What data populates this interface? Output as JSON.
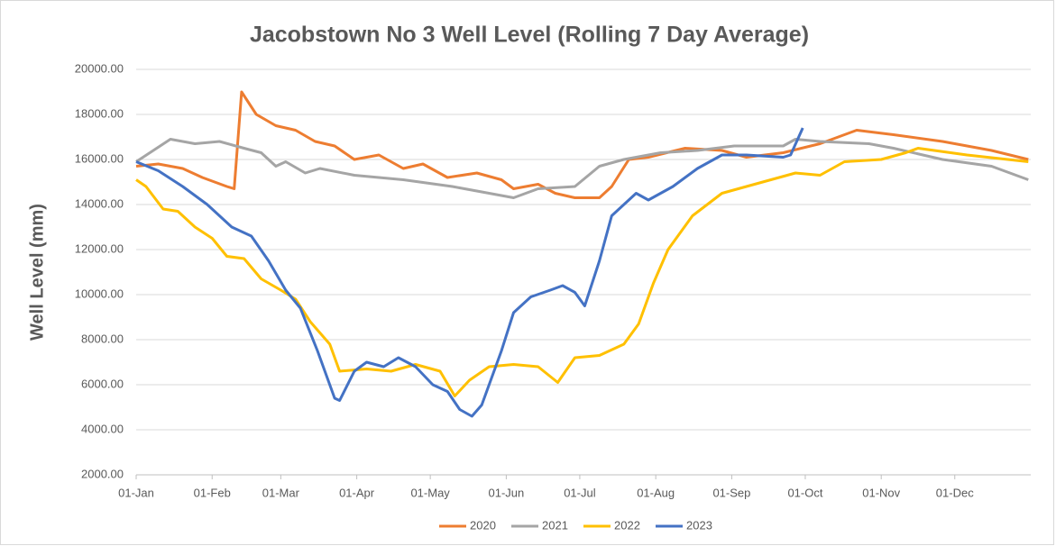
{
  "chart_data": {
    "type": "line",
    "title": "Jacobstown No 3 Well Level (Rolling 7 Day Average)",
    "y_label": "Well Level (mm)",
    "xlim": [
      1,
      366
    ],
    "xticks": [
      {
        "value": 1,
        "label": "01-Jan"
      },
      {
        "value": 32,
        "label": "01-Feb"
      },
      {
        "value": 60,
        "label": "01-Mar"
      },
      {
        "value": 91,
        "label": "01-Apr"
      },
      {
        "value": 121,
        "label": "01-May"
      },
      {
        "value": 152,
        "label": "01-Jun"
      },
      {
        "value": 182,
        "label": "01-Jul"
      },
      {
        "value": 213,
        "label": "01-Aug"
      },
      {
        "value": 244,
        "label": "01-Sep"
      },
      {
        "value": 274,
        "label": "01-Oct"
      },
      {
        "value": 305,
        "label": "01-Nov"
      },
      {
        "value": 335,
        "label": "01-Dec"
      }
    ],
    "ylim": [
      2000,
      20000
    ],
    "yticks": [
      {
        "value": 2000,
        "label": "2000.00"
      },
      {
        "value": 4000,
        "label": "4000.00"
      },
      {
        "value": 6000,
        "label": "6000.00"
      },
      {
        "value": 8000,
        "label": "8000.00"
      },
      {
        "value": 10000,
        "label": "10000.00"
      },
      {
        "value": 12000,
        "label": "12000.00"
      },
      {
        "value": 14000,
        "label": "14000.00"
      },
      {
        "value": 16000,
        "label": "16000.00"
      },
      {
        "value": 18000,
        "label": "18000.00"
      },
      {
        "value": 20000,
        "label": "20000.00"
      }
    ],
    "grid": true,
    "legend": "bottom",
    "series": [
      {
        "name": "2020",
        "color": "#ed7d31",
        "x": [
          1,
          10,
          20,
          28,
          38,
          41,
          44,
          50,
          58,
          66,
          74,
          82,
          90,
          100,
          110,
          118,
          128,
          140,
          150,
          155,
          165,
          172,
          180,
          190,
          195,
          202,
          210,
          225,
          240,
          250,
          265,
          280,
          295,
          310,
          330,
          350,
          365
        ],
        "values": [
          15700,
          15800,
          15600,
          15200,
          14800,
          14700,
          19000,
          18000,
          17500,
          17300,
          16800,
          16600,
          16000,
          16200,
          15600,
          15800,
          15200,
          15400,
          15100,
          14700,
          14900,
          14500,
          14300,
          14300,
          14800,
          16000,
          16100,
          16500,
          16400,
          16100,
          16300,
          16700,
          17300,
          17100,
          16800,
          16400,
          16000
        ]
      },
      {
        "name": "2021",
        "color": "#a5a5a5",
        "x": [
          1,
          15,
          25,
          35,
          45,
          52,
          58,
          62,
          70,
          76,
          90,
          110,
          130,
          145,
          155,
          165,
          180,
          190,
          200,
          215,
          230,
          245,
          255,
          265,
          270,
          280,
          300,
          310,
          330,
          350,
          365
        ],
        "values": [
          15900,
          16900,
          16700,
          16800,
          16500,
          16300,
          15700,
          15900,
          15400,
          15600,
          15300,
          15100,
          14800,
          14500,
          14300,
          14700,
          14800,
          15700,
          16000,
          16300,
          16400,
          16600,
          16600,
          16600,
          16900,
          16800,
          16700,
          16500,
          16000,
          15700,
          15100
        ]
      },
      {
        "name": "2022",
        "color": "#ffc000",
        "x": [
          1,
          5,
          12,
          18,
          25,
          32,
          38,
          45,
          52,
          60,
          66,
          72,
          80,
          84,
          95,
          105,
          115,
          125,
          131,
          137,
          145,
          155,
          165,
          173,
          180,
          190,
          200,
          206,
          212,
          218,
          228,
          240,
          250,
          260,
          270,
          280,
          290,
          305,
          315,
          320,
          340,
          365
        ],
        "values": [
          15100,
          14800,
          13800,
          13700,
          13000,
          12500,
          11700,
          11600,
          10700,
          10200,
          9800,
          8800,
          7800,
          6600,
          6700,
          6600,
          6900,
          6600,
          5500,
          6200,
          6800,
          6900,
          6800,
          6100,
          7200,
          7300,
          7800,
          8700,
          10500,
          12000,
          13500,
          14500,
          14800,
          15100,
          15400,
          15300,
          15900,
          16000,
          16300,
          16500,
          16200,
          15900
        ]
      },
      {
        "name": "2023",
        "color": "#4472c4",
        "x": [
          1,
          10,
          20,
          30,
          40,
          48,
          55,
          62,
          68,
          75,
          82,
          84,
          90,
          95,
          102,
          108,
          115,
          122,
          128,
          133,
          138,
          142,
          150,
          155,
          162,
          170,
          175,
          180,
          184,
          190,
          195,
          205,
          210,
          220,
          230,
          240,
          250,
          265,
          268,
          273
        ],
        "values": [
          15900,
          15500,
          14800,
          14000,
          13000,
          12600,
          11500,
          10200,
          9400,
          7500,
          5400,
          5300,
          6600,
          7000,
          6800,
          7200,
          6800,
          6000,
          5700,
          4900,
          4600,
          5100,
          7500,
          9200,
          9900,
          10200,
          10400,
          10100,
          9500,
          11500,
          13500,
          14500,
          14200,
          14800,
          15600,
          16200,
          16200,
          16100,
          16200,
          17400
        ]
      }
    ]
  }
}
